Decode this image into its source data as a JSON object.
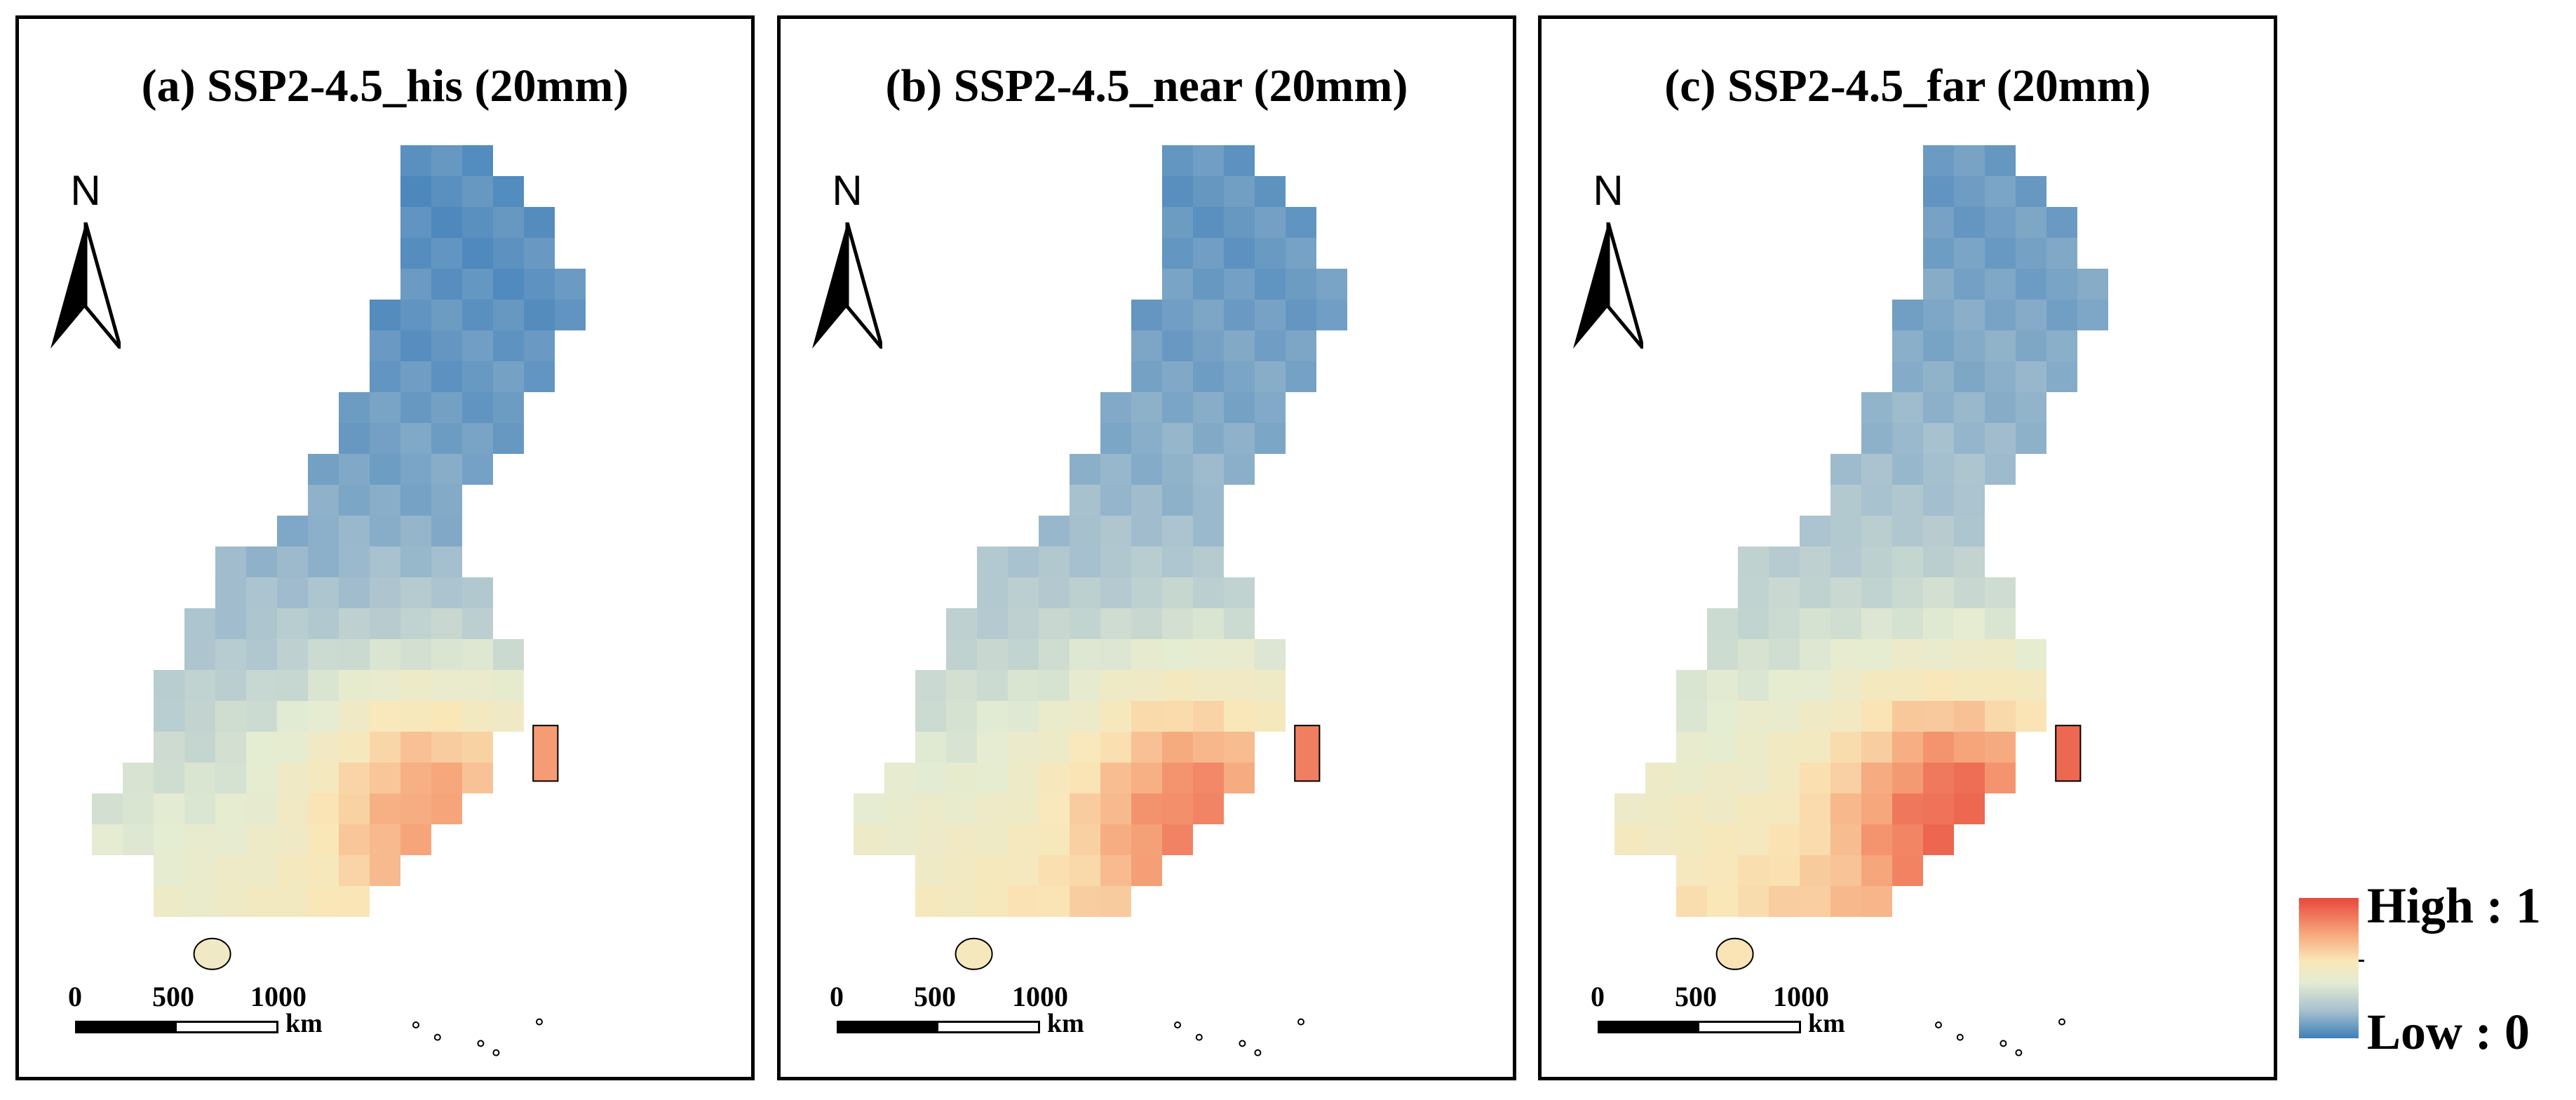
{
  "panels": [
    {
      "title": "(a) SSP2-4.5_his (20mm)",
      "scenario_shift": 0.0
    },
    {
      "title": "(b) SSP2-4.5_near (20mm)",
      "scenario_shift": 0.06
    },
    {
      "title": "(c) SSP2-4.5_far (20mm)",
      "scenario_shift": 0.11
    }
  ],
  "north_arrow": {
    "label": "N"
  },
  "scale_bar": {
    "labels": [
      "0",
      "500",
      "1000"
    ],
    "unit": "km"
  },
  "legend": {
    "high_label": "High : 1",
    "low_label": "Low : 0",
    "colors": [
      "#3f7fba",
      "#a9c2cf",
      "#e4ecd2",
      "#fae7b8",
      "#f6a57a",
      "#e8473b"
    ]
  },
  "colors": {
    "frame": "#000000",
    "coastline": "#000000"
  }
}
